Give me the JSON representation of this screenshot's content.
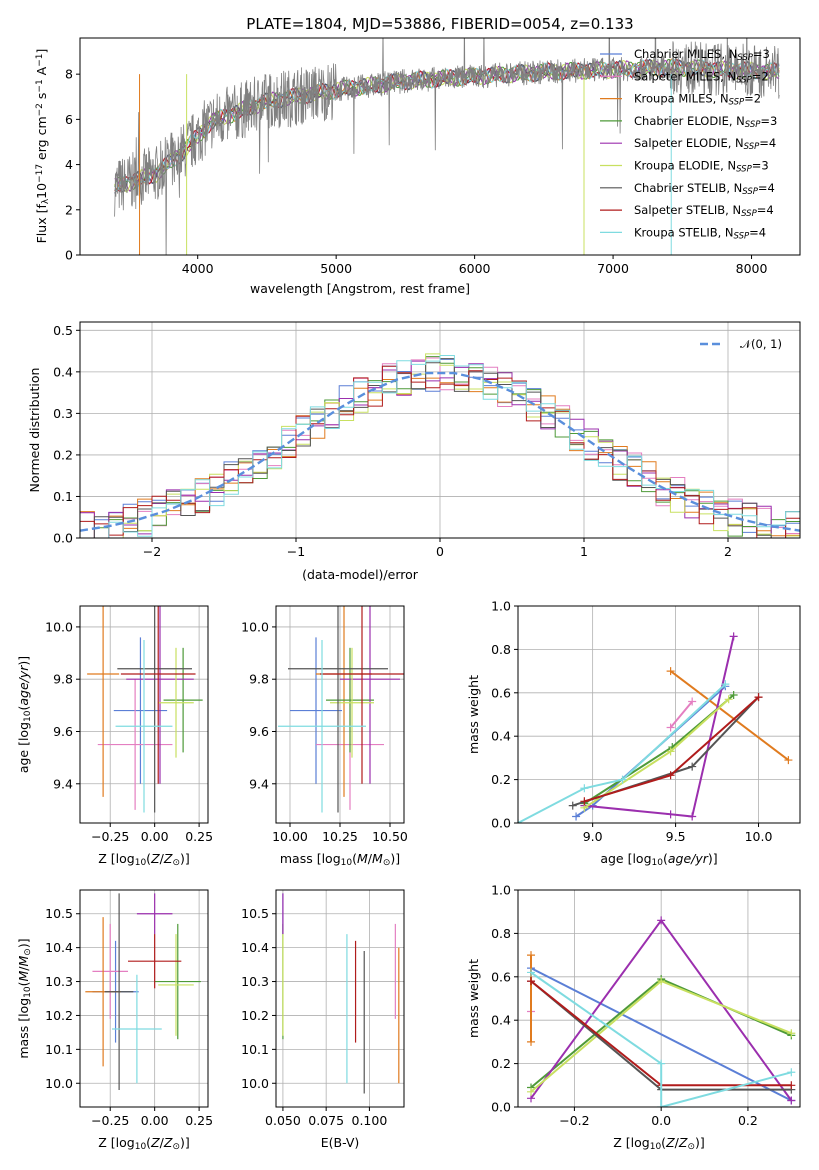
{
  "figure_title": "PLATE=1804, MJD=53886, FIBERID=0054, z=0.133",
  "models": [
    {
      "name": "Chabrier MILES",
      "nssp": "3",
      "color": "#5b7fd6"
    },
    {
      "name": "Salpeter MILES",
      "nssp": "2",
      "color": "#e47fc1"
    },
    {
      "name": "Kroupa MILES",
      "nssp": "2",
      "color": "#e07b1f"
    },
    {
      "name": "Chabrier ELODIE",
      "nssp": "3",
      "color": "#4e9a38"
    },
    {
      "name": "Salpeter ELODIE",
      "nssp": "4",
      "color": "#9b2fae"
    },
    {
      "name": "Kroupa ELODIE",
      "nssp": "3",
      "color": "#c8e060"
    },
    {
      "name": "Chabrier STELIB",
      "nssp": "4",
      "color": "#555555"
    },
    {
      "name": "Salpeter STELIB",
      "nssp": "4",
      "color": "#b01c1c"
    },
    {
      "name": "Kroupa STELIB",
      "nssp": "4",
      "color": "#7fdbe0"
    }
  ],
  "chart_data": [
    {
      "id": "spectrum",
      "type": "line",
      "xlabel": "wavelength [Angstrom, rest frame]",
      "ylabel": "Flux [f_λ 10^-17 erg cm^-2 s^-1 A^-1]",
      "xlim": [
        3150,
        8350
      ],
      "ylim": [
        0,
        9.6
      ],
      "xticks": [
        "4000",
        "5000",
        "6000",
        "7000",
        "8000"
      ],
      "yticks": [
        "0",
        "2",
        "4",
        "6",
        "8"
      ],
      "legend_position": "right",
      "data_color": "#808080",
      "continuum": [
        [
          3400,
          3.0
        ],
        [
          3700,
          3.6
        ],
        [
          3900,
          4.6
        ],
        [
          4100,
          5.9
        ],
        [
          4500,
          6.8
        ],
        [
          5000,
          7.3
        ],
        [
          5500,
          7.7
        ],
        [
          6000,
          7.9
        ],
        [
          6500,
          8.1
        ],
        [
          7000,
          8.2
        ],
        [
          7400,
          8.3
        ],
        [
          7800,
          8.2
        ],
        [
          8200,
          8.1
        ]
      ]
    },
    {
      "id": "residuals",
      "type": "line",
      "xlabel": "(data-model)/error",
      "ylabel": "Normed distribution",
      "xlim": [
        -2.5,
        2.5
      ],
      "ylim": [
        0,
        0.52
      ],
      "xticks": [
        "−2",
        "−1",
        "0",
        "1",
        "2"
      ],
      "yticks": [
        "0.0",
        "0.1",
        "0.2",
        "0.3",
        "0.4",
        "0.5"
      ],
      "reference_label": "𝒩(0, 1)",
      "reference_color": "#5a8fdc",
      "reference_values": [
        0.0175,
        0.0283,
        0.044,
        0.0656,
        0.094,
        0.1295,
        0.1714,
        0.2179,
        0.2661,
        0.3123,
        0.3521,
        0.3814,
        0.3969,
        0.3969,
        0.3814,
        0.3521,
        0.3123,
        0.2661,
        0.2179,
        0.1714,
        0.1295,
        0.094,
        0.0656,
        0.044,
        0.0283,
        0.0175
      ],
      "reference_x": [
        -2.5,
        -2.3,
        -2.1,
        -1.9,
        -1.7,
        -1.5,
        -1.3,
        -1.1,
        -0.9,
        -0.7,
        -0.5,
        -0.3,
        -0.1,
        0.1,
        0.3,
        0.5,
        0.7,
        0.9,
        1.1,
        1.3,
        1.5,
        1.7,
        1.9,
        2.1,
        2.3,
        2.5
      ]
    },
    {
      "id": "age_vs_Z",
      "type": "scatter",
      "xlabel": "Z [log10(Z/Z⊙)]",
      "ylabel": "age [log10(age/yr)]",
      "xlim": [
        -0.42,
        0.3
      ],
      "ylim": [
        9.25,
        10.08
      ],
      "xticks": [
        "−0.25",
        "0.00",
        "0.25"
      ],
      "yticks": [
        "9.4",
        "9.6",
        "9.8",
        "10.0"
      ],
      "points": [
        {
          "model": 0,
          "x": -0.08,
          "y": 9.68,
          "xerr": 0.15,
          "yerr": 0.28
        },
        {
          "model": 1,
          "x": -0.11,
          "y": 9.55,
          "xerr": 0.21,
          "yerr": 0.25
        },
        {
          "model": 2,
          "x": -0.29,
          "y": 9.82,
          "xerr": 0.09,
          "yerr": 0.47
        },
        {
          "model": 3,
          "x": 0.16,
          "y": 9.72,
          "xerr": 0.11,
          "yerr": 0.2
        },
        {
          "model": 4,
          "x": 0.03,
          "y": 9.8,
          "xerr": 0.19,
          "yerr": 0.4
        },
        {
          "model": 5,
          "x": 0.12,
          "y": 9.71,
          "xerr": 0.1,
          "yerr": 0.21
        },
        {
          "model": 6,
          "x": 0.0,
          "y": 9.84,
          "xerr": 0.21,
          "yerr": 0.55
        },
        {
          "model": 7,
          "x": 0.02,
          "y": 9.82,
          "xerr": 0.21,
          "yerr": 0.42
        },
        {
          "model": 8,
          "x": -0.06,
          "y": 9.62,
          "xerr": 0.16,
          "yerr": 0.33
        }
      ]
    },
    {
      "id": "age_vs_mass",
      "type": "scatter",
      "xlabel": "mass [log10(M/M⊙)]",
      "ylabel": "",
      "xlim": [
        9.93,
        10.57
      ],
      "ylim": [
        9.25,
        10.08
      ],
      "xticks": [
        "10.00",
        "10.25",
        "10.50"
      ],
      "yticks": [
        "9.4",
        "9.6",
        "9.8",
        "10.0"
      ],
      "points": [
        {
          "model": 0,
          "x": 10.13,
          "y": 9.68,
          "xerr": 0.13,
          "yerr": 0.28
        },
        {
          "model": 1,
          "x": 10.3,
          "y": 9.55,
          "xerr": 0.17,
          "yerr": 0.25
        },
        {
          "model": 2,
          "x": 10.27,
          "y": 9.82,
          "xerr": 0.14,
          "yerr": 0.47
        },
        {
          "model": 3,
          "x": 10.3,
          "y": 9.72,
          "xerr": 0.12,
          "yerr": 0.2
        },
        {
          "model": 4,
          "x": 10.4,
          "y": 9.8,
          "xerr": 0.15,
          "yerr": 0.4
        },
        {
          "model": 5,
          "x": 10.31,
          "y": 9.71,
          "xerr": 0.11,
          "yerr": 0.21
        },
        {
          "model": 6,
          "x": 10.24,
          "y": 9.84,
          "xerr": 0.25,
          "yerr": 0.55
        },
        {
          "model": 7,
          "x": 10.36,
          "y": 9.82,
          "xerr": 0.21,
          "yerr": 0.42
        },
        {
          "model": 8,
          "x": 10.16,
          "y": 9.62,
          "xerr": 0.22,
          "yerr": 0.33
        }
      ]
    },
    {
      "id": "weight_vs_age",
      "type": "line",
      "xlabel": "age [log10(age/yr)]",
      "ylabel": "mass weight",
      "xlim": [
        8.55,
        10.25
      ],
      "ylim": [
        0,
        1.0
      ],
      "xticks": [
        "9.0",
        "9.5",
        "10.0"
      ],
      "yticks": [
        "0.0",
        "0.2",
        "0.4",
        "0.6",
        "0.8",
        "1.0"
      ],
      "series": [
        {
          "model": 0,
          "x": [
            8.9,
            9.0,
            9.8
          ],
          "y": [
            0.03,
            0.08,
            0.63
          ]
        },
        {
          "model": 1,
          "x": [
            9.47,
            9.6
          ],
          "y": [
            0.44,
            0.56
          ]
        },
        {
          "model": 2,
          "x": [
            9.47,
            10.18
          ],
          "y": [
            0.7,
            0.29
          ]
        },
        {
          "model": 3,
          "x": [
            8.95,
            9.48,
            9.85
          ],
          "y": [
            0.09,
            0.35,
            0.59
          ]
        },
        {
          "model": 4,
          "x": [
            8.95,
            9.47,
            9.6,
            9.85
          ],
          "y": [
            0.08,
            0.04,
            0.03,
            0.86
          ]
        },
        {
          "model": 5,
          "x": [
            8.95,
            9.47,
            9.82
          ],
          "y": [
            0.07,
            0.33,
            0.57
          ]
        },
        {
          "model": 6,
          "x": [
            8.88,
            9.6,
            10.0
          ],
          "y": [
            0.08,
            0.26,
            0.58
          ]
        },
        {
          "model": 7,
          "x": [
            8.95,
            9.47,
            10.0
          ],
          "y": [
            0.1,
            0.22,
            0.58
          ]
        },
        {
          "model": 8,
          "x": [
            8.55,
            8.95,
            9.18,
            9.8
          ],
          "y": [
            0.0,
            0.16,
            0.2,
            0.64
          ]
        }
      ]
    },
    {
      "id": "mass_vs_Z",
      "type": "scatter",
      "xlabel": "Z [log10(Z/Z⊙)]",
      "ylabel": "mass [log10(M/M⊙)]",
      "xlim": [
        -0.42,
        0.3
      ],
      "ylim": [
        9.93,
        10.57
      ],
      "xticks": [
        "−0.25",
        "0.00",
        "0.25"
      ],
      "yticks": [
        "10.0",
        "10.1",
        "10.2",
        "10.3",
        "10.4",
        "10.5"
      ],
      "points": [
        {
          "model": 0,
          "x": -0.22,
          "y": 10.27,
          "xerr": 0.13,
          "yerr": 0.15
        },
        {
          "model": 1,
          "x": -0.25,
          "y": 10.33,
          "xerr": 0.1,
          "yerr": 0.14
        },
        {
          "model": 2,
          "x": -0.29,
          "y": 10.27,
          "xerr": 0.1,
          "yerr": 0.22
        },
        {
          "model": 3,
          "x": 0.13,
          "y": 10.3,
          "xerr": 0.13,
          "yerr": 0.17
        },
        {
          "model": 4,
          "x": 0.0,
          "y": 10.5,
          "xerr": 0.1,
          "yerr": 0.06
        },
        {
          "model": 5,
          "x": 0.12,
          "y": 10.29,
          "xerr": 0.1,
          "yerr": 0.15
        },
        {
          "model": 6,
          "x": -0.2,
          "y": 10.27,
          "xerr": 0.08,
          "yerr": 0.29
        },
        {
          "model": 7,
          "x": 0.0,
          "y": 10.36,
          "xerr": 0.15,
          "yerr": 0.08
        },
        {
          "model": 8,
          "x": -0.1,
          "y": 10.16,
          "xerr": 0.14,
          "yerr": 0.16
        }
      ]
    },
    {
      "id": "mass_vs_ebv",
      "type": "scatter",
      "xlabel": "E(B-V)",
      "ylabel": "",
      "xlim": [
        0.046,
        0.12
      ],
      "ylim": [
        9.93,
        10.57
      ],
      "xticks": [
        "0.050",
        "0.075",
        "0.100"
      ],
      "yticks": [
        "10.0",
        "10.1",
        "10.2",
        "10.3",
        "10.4",
        "10.5"
      ],
      "points": [
        {
          "model": 0,
          "x": 0.05,
          "y": 10.5,
          "yerr": 0.06
        },
        {
          "model": 1,
          "x": 0.115,
          "y": 10.33,
          "yerr": 0.14
        },
        {
          "model": 2,
          "x": 0.117,
          "y": 10.2,
          "yerr": 0.2
        },
        {
          "model": 3,
          "x": 0.05,
          "y": 10.3,
          "yerr": 0.17
        },
        {
          "model": 4,
          "x": 0.05,
          "y": 10.5,
          "yerr": 0.06
        },
        {
          "model": 5,
          "x": 0.05,
          "y": 10.29,
          "yerr": 0.15
        },
        {
          "model": 6,
          "x": 0.097,
          "y": 10.18,
          "yerr": 0.21
        },
        {
          "model": 7,
          "x": 0.092,
          "y": 10.27,
          "yerr": 0.15
        },
        {
          "model": 8,
          "x": 0.087,
          "y": 10.22,
          "yerr": 0.22
        }
      ]
    },
    {
      "id": "weight_vs_Z",
      "type": "line",
      "xlabel": "Z [log10(Z/Z⊙)]",
      "ylabel": "mass weight",
      "xlim": [
        -0.33,
        0.32
      ],
      "ylim": [
        0,
        1.0
      ],
      "xticks": [
        "−0.2",
        "0.0",
        "0.2"
      ],
      "yticks": [
        "0.0",
        "0.2",
        "0.4",
        "0.6",
        "0.8",
        "1.0"
      ],
      "series": [
        {
          "model": 0,
          "x": [
            -0.3,
            0.3
          ],
          "y": [
            0.64,
            0.03
          ]
        },
        {
          "model": 1,
          "x": [
            -0.3,
            -0.3
          ],
          "y": [
            0.58,
            0.44
          ]
        },
        {
          "model": 2,
          "x": [
            -0.3,
            -0.3
          ],
          "y": [
            0.7,
            0.3
          ]
        },
        {
          "model": 3,
          "x": [
            -0.3,
            0.0,
            0.3
          ],
          "y": [
            0.09,
            0.59,
            0.33
          ]
        },
        {
          "model": 4,
          "x": [
            -0.3,
            0.0,
            0.3
          ],
          "y": [
            0.04,
            0.86,
            0.03
          ]
        },
        {
          "model": 5,
          "x": [
            -0.3,
            0.0,
            0.3
          ],
          "y": [
            0.07,
            0.58,
            0.34
          ]
        },
        {
          "model": 6,
          "x": [
            -0.3,
            0.0,
            0.3
          ],
          "y": [
            0.58,
            0.08,
            0.08
          ]
        },
        {
          "model": 7,
          "x": [
            -0.3,
            0.0,
            0.3
          ],
          "y": [
            0.58,
            0.1,
            0.1
          ]
        },
        {
          "model": 8,
          "x": [
            -0.3,
            0.0,
            0.0,
            0.3
          ],
          "y": [
            0.62,
            0.2,
            0.0,
            0.16
          ]
        }
      ]
    }
  ]
}
